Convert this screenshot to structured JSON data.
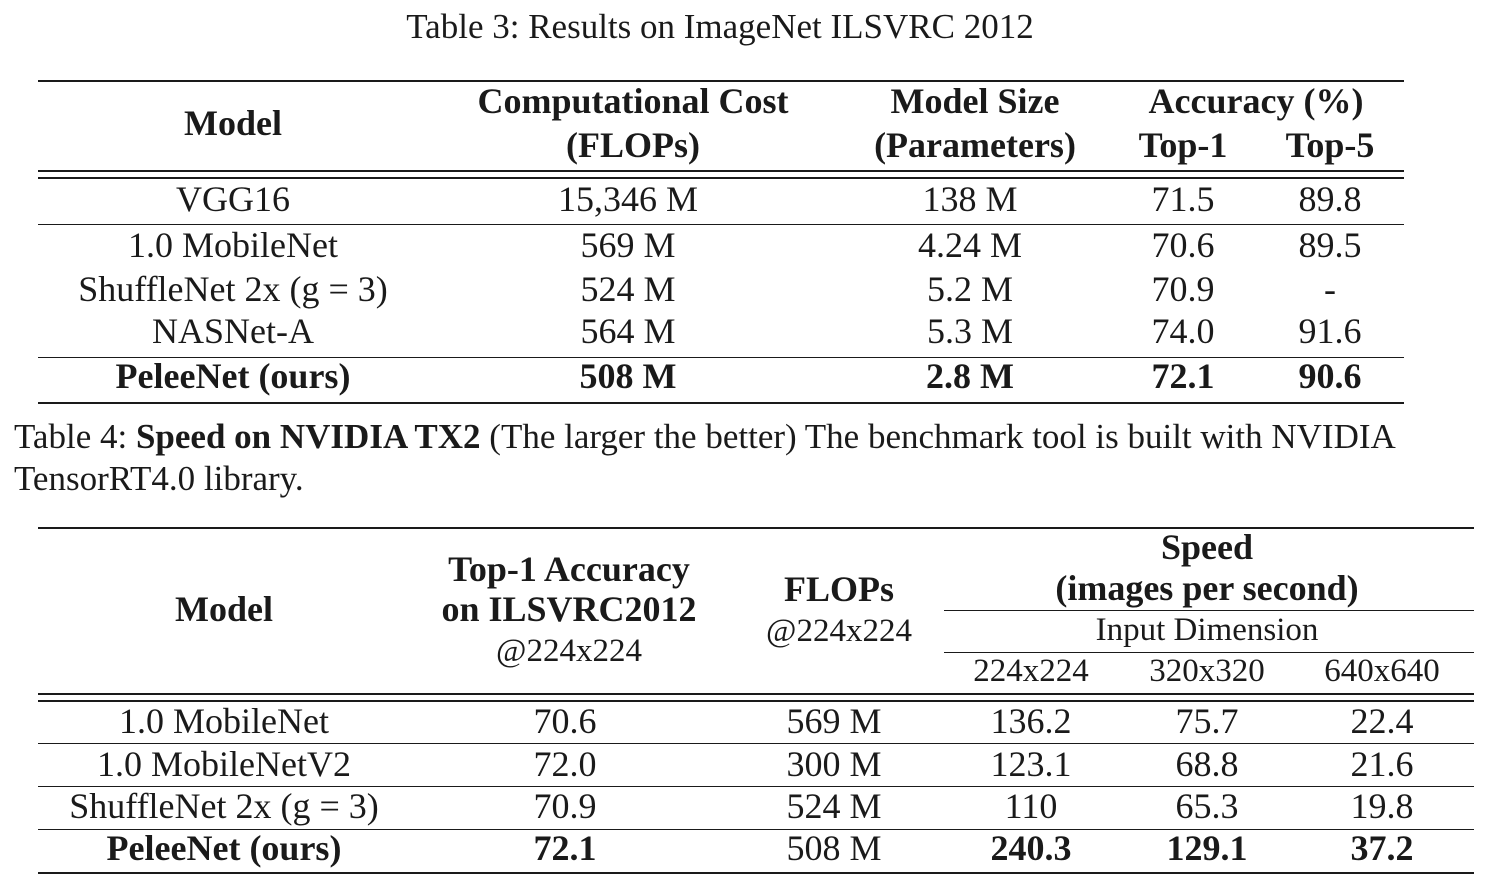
{
  "table3": {
    "caption": "Table 3: Results on ImageNet ILSVRC 2012",
    "header": {
      "model": "Model",
      "comp_cost_1": "Computational Cost",
      "comp_cost_2": "(FLOPs)",
      "model_size_1": "Model Size",
      "model_size_2": "(Parameters)",
      "accuracy": "Accuracy (%)",
      "top1": "Top-1",
      "top5": "Top-5"
    },
    "rows": [
      {
        "model": "VGG16",
        "flops": "15,346 M",
        "params": "138 M",
        "top1": "71.5",
        "top5": "89.8"
      },
      {
        "model": "1.0 MobileNet",
        "flops": "569 M",
        "params": "4.24 M",
        "top1": "70.6",
        "top5": "89.5"
      },
      {
        "model": "ShuffleNet 2x (g = 3)",
        "flops": "524 M",
        "params": "5.2 M",
        "top1": "70.9",
        "top5": "-"
      },
      {
        "model": "NASNet-A",
        "flops": "564 M",
        "params": "5.3 M",
        "top1": "74.0",
        "top5": "91.6"
      },
      {
        "model": "PeleeNet (ours)",
        "flops": "508 M",
        "params": "2.8 M",
        "top1": "72.1",
        "top5": "90.6"
      }
    ]
  },
  "table4": {
    "caption_label": "Table 4: ",
    "caption_bold": "Speed on NVIDIA TX2",
    "caption_rest_1": " (The larger the better) The benchmark tool is built with NVIDIA",
    "caption_rest_2": "TensorRT4.0 library.",
    "header": {
      "model": "Model",
      "acc_1": "Top-1 Accuracy",
      "acc_2": "on ILSVRC2012",
      "acc_3": "@224x224",
      "flops_1": "FLOPs",
      "flops_2": "@224x224",
      "speed_1": "Speed",
      "speed_2": "(images per second)",
      "input_dim": "Input Dimension",
      "d224": "224x224",
      "d320": "320x320",
      "d640": "640x640"
    },
    "rows": [
      {
        "model": "1.0 MobileNet",
        "acc": "70.6",
        "flops": "569 M",
        "s224": "136.2",
        "s320": "75.7",
        "s640": "22.4"
      },
      {
        "model": "1.0 MobileNetV2",
        "acc": "72.0",
        "flops": "300 M",
        "s224": "123.1",
        "s320": "68.8",
        "s640": "21.6"
      },
      {
        "model": "ShuffleNet 2x (g = 3)",
        "acc": "70.9",
        "flops": "524 M",
        "s224": "110",
        "s320": "65.3",
        "s640": "19.8"
      },
      {
        "model": "PeleeNet (ours)",
        "acc": "72.1",
        "flops": "508 M",
        "s224": "240.3",
        "s320": "129.1",
        "s640": "37.2"
      }
    ]
  }
}
